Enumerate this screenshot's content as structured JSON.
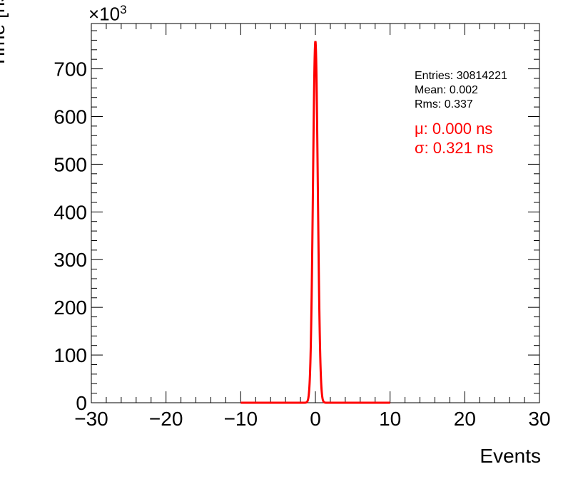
{
  "chart_data": {
    "type": "line",
    "xlabel": "Events",
    "ylabel": "Time [ns]",
    "y_multiplier_base": "×10",
    "y_multiplier_exp": "3",
    "xlim": [
      -30,
      30
    ],
    "ylim": [
      0,
      795
    ],
    "x_ticks": [
      -30,
      -20,
      -10,
      0,
      10,
      20,
      30
    ],
    "x_tick_labels": [
      "−30",
      "−20",
      "−10",
      "0",
      "10",
      "20",
      "30"
    ],
    "y_ticks": [
      0,
      100,
      200,
      300,
      400,
      500,
      600,
      700
    ],
    "y_tick_labels": [
      "0",
      "100",
      "200",
      "300",
      "400",
      "500",
      "600",
      "700"
    ],
    "stats": {
      "entries": "Entries: 30814221",
      "mean": "Mean: 0.002",
      "rms": "Rms: 0.337"
    },
    "fit": {
      "mu_text": "μ: 0.000 ns",
      "sigma_text": "σ: 0.321 ns",
      "mu": 0.0,
      "sigma": 0.321,
      "amplitude": 758,
      "range": [
        -10,
        10
      ],
      "color": "#ff0000"
    },
    "series": [
      {
        "values_note": "",
        "x": [
          -1.2,
          -1.0,
          -0.8,
          -0.6,
          -0.5,
          -0.4,
          -0.3,
          -0.2,
          -0.1,
          0.0,
          0.1,
          0.2,
          0.3,
          0.4,
          0.5,
          0.6,
          0.8,
          1.0,
          1.2
        ],
        "y": [
          0,
          6,
          30,
          130,
          220,
          380,
          520,
          620,
          720,
          758,
          720,
          620,
          520,
          380,
          220,
          130,
          30,
          6,
          0
        ],
        "color": "#000000"
      }
    ]
  }
}
